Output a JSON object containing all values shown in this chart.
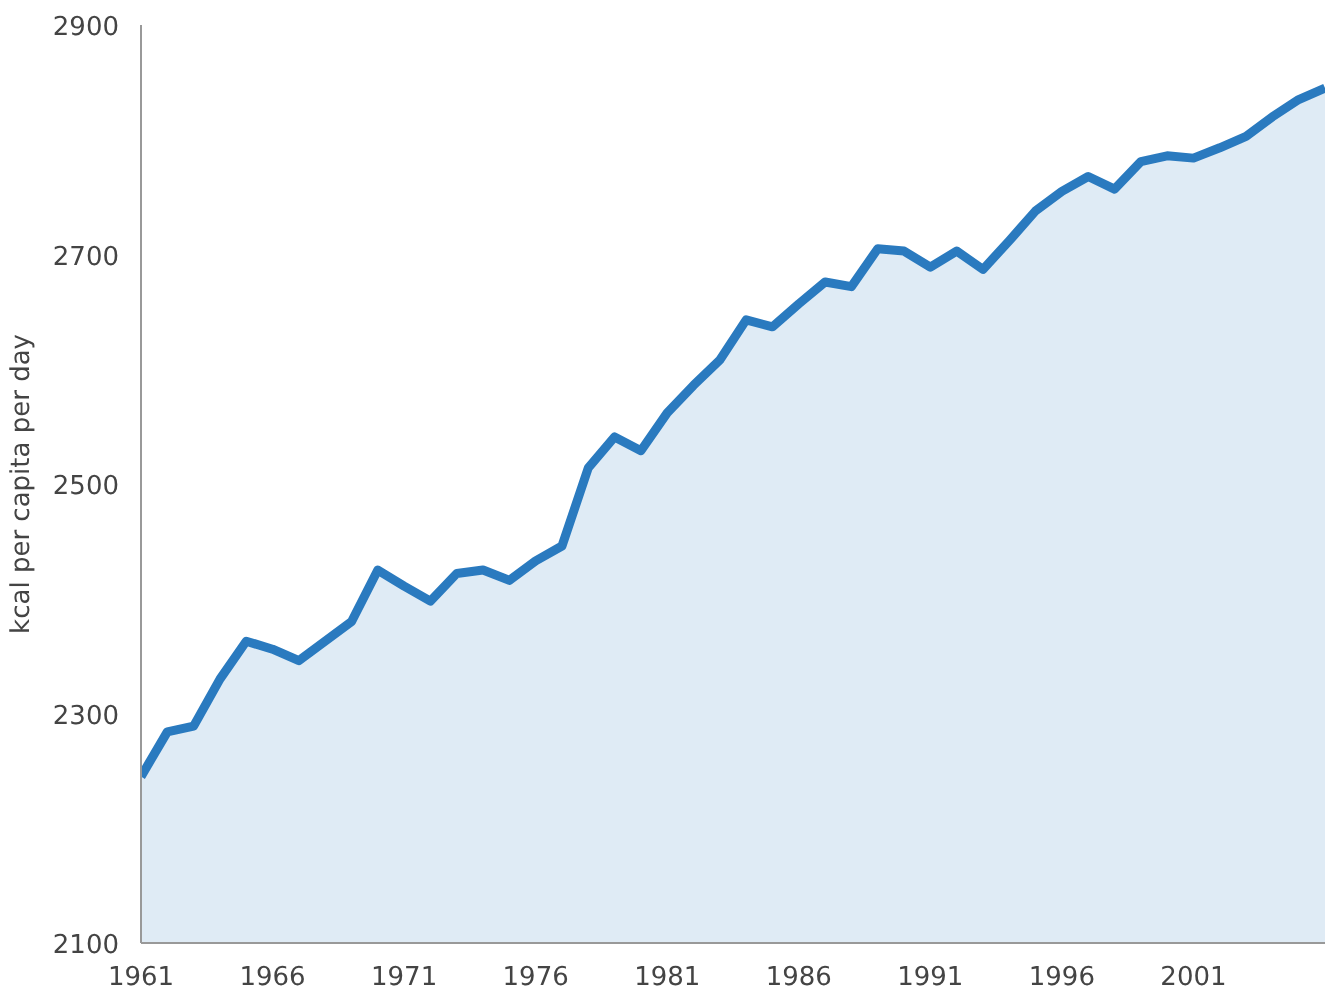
{
  "chart_data": {
    "type": "area",
    "ylabel": "kcal per capita per day",
    "x": [
      1961,
      1962,
      1963,
      1964,
      1965,
      1966,
      1967,
      1968,
      1969,
      1970,
      1971,
      1972,
      1973,
      1974,
      1975,
      1976,
      1977,
      1978,
      1979,
      1980,
      1981,
      1982,
      1983,
      1984,
      1985,
      1986,
      1987,
      1988,
      1989,
      1990,
      1991,
      1992,
      1993,
      1994,
      1995,
      1996,
      1997,
      1998,
      1999,
      2000,
      2001,
      2002,
      2003,
      2004,
      2005,
      2006
    ],
    "series": [
      {
        "color": "#2a7abf",
        "values": [
          2245,
          2284,
          2289,
          2330,
          2363,
          2356,
          2346,
          2363,
          2380,
          2425,
          2411,
          2398,
          2422,
          2425,
          2416,
          2433,
          2446,
          2514,
          2541,
          2529,
          2562,
          2586,
          2608,
          2643,
          2637,
          2657,
          2676,
          2672,
          2705,
          2703,
          2689,
          2703,
          2687,
          2712,
          2738,
          2755,
          2768,
          2757,
          2781,
          2786,
          2784,
          2793,
          2803,
          2820,
          2835,
          2845
        ]
      }
    ],
    "xlim": [
      1961,
      2006
    ],
    "ylim": [
      2100,
      2900
    ],
    "xticks": [
      1961,
      1966,
      1971,
      1976,
      1981,
      1986,
      1991,
      1996,
      2001
    ],
    "yticks": [
      2100,
      2300,
      2500,
      2700,
      2900
    ],
    "grid": false
  }
}
